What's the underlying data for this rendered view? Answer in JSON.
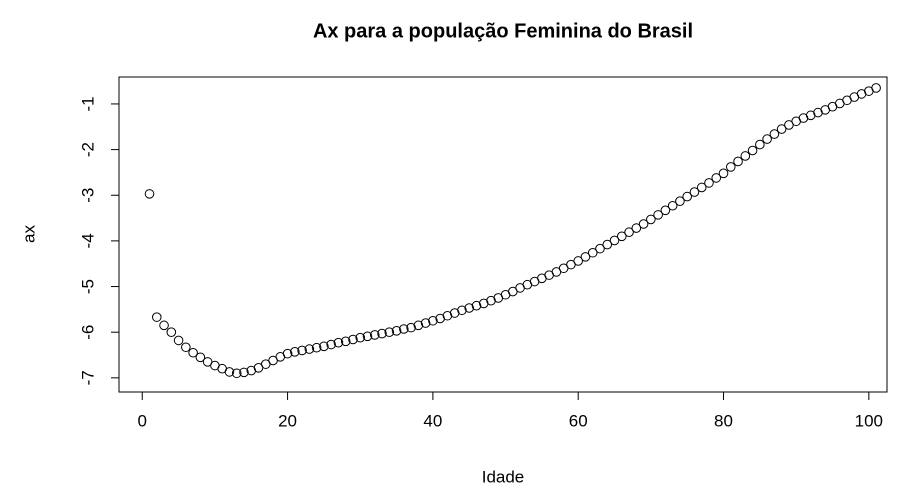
{
  "chart_data": {
    "type": "scatter",
    "title": "Ax para a população Feminina do Brasil",
    "x_label": "Idade",
    "y_label": "ax",
    "x": [
      1,
      2,
      3,
      4,
      5,
      6,
      7,
      8,
      9,
      10,
      11,
      12,
      13,
      14,
      15,
      16,
      17,
      18,
      19,
      20,
      21,
      22,
      23,
      24,
      25,
      26,
      27,
      28,
      29,
      30,
      31,
      32,
      33,
      34,
      35,
      36,
      37,
      38,
      39,
      40,
      41,
      42,
      43,
      44,
      45,
      46,
      47,
      48,
      49,
      50,
      51,
      52,
      53,
      54,
      55,
      56,
      57,
      58,
      59,
      60,
      61,
      62,
      63,
      64,
      65,
      66,
      67,
      68,
      69,
      70,
      71,
      72,
      73,
      74,
      75,
      76,
      77,
      78,
      79,
      80,
      81,
      82,
      83,
      84,
      85,
      86,
      87,
      88,
      89,
      90,
      91,
      92,
      93,
      94,
      95,
      96,
      97,
      98,
      99,
      100,
      101
    ],
    "values": [
      -2.97,
      -5.67,
      -5.85,
      -6.0,
      -6.18,
      -6.33,
      -6.45,
      -6.55,
      -6.65,
      -6.73,
      -6.8,
      -6.87,
      -6.9,
      -6.88,
      -6.84,
      -6.78,
      -6.7,
      -6.62,
      -6.54,
      -6.47,
      -6.43,
      -6.4,
      -6.37,
      -6.34,
      -6.31,
      -6.27,
      -6.23,
      -6.2,
      -6.16,
      -6.12,
      -6.09,
      -6.06,
      -6.03,
      -6.0,
      -5.97,
      -5.93,
      -5.9,
      -5.85,
      -5.8,
      -5.75,
      -5.7,
      -5.64,
      -5.58,
      -5.52,
      -5.47,
      -5.42,
      -5.37,
      -5.31,
      -5.25,
      -5.18,
      -5.11,
      -5.03,
      -4.96,
      -4.89,
      -4.82,
      -4.75,
      -4.68,
      -4.6,
      -4.52,
      -4.44,
      -4.35,
      -4.26,
      -4.17,
      -4.08,
      -3.99,
      -3.9,
      -3.81,
      -3.72,
      -3.63,
      -3.53,
      -3.43,
      -3.33,
      -3.23,
      -3.13,
      -3.03,
      -2.93,
      -2.83,
      -2.73,
      -2.62,
      -2.52,
      -2.38,
      -2.26,
      -2.14,
      -2.02,
      -1.89,
      -1.77,
      -1.66,
      -1.55,
      -1.46,
      -1.38,
      -1.31,
      -1.25,
      -1.19,
      -1.13,
      -1.06,
      -0.99,
      -0.92,
      -0.85,
      -0.78,
      -0.72,
      -0.65
    ],
    "color": "#000000",
    "xlim": [
      -3.2,
      102.5
    ],
    "xticks": [
      0,
      20,
      40,
      60,
      80,
      100
    ],
    "ylim": [
      -7.31,
      -0.41
    ],
    "yticks": [
      -7,
      -6,
      -5,
      -4,
      -3,
      -2,
      -1
    ]
  }
}
